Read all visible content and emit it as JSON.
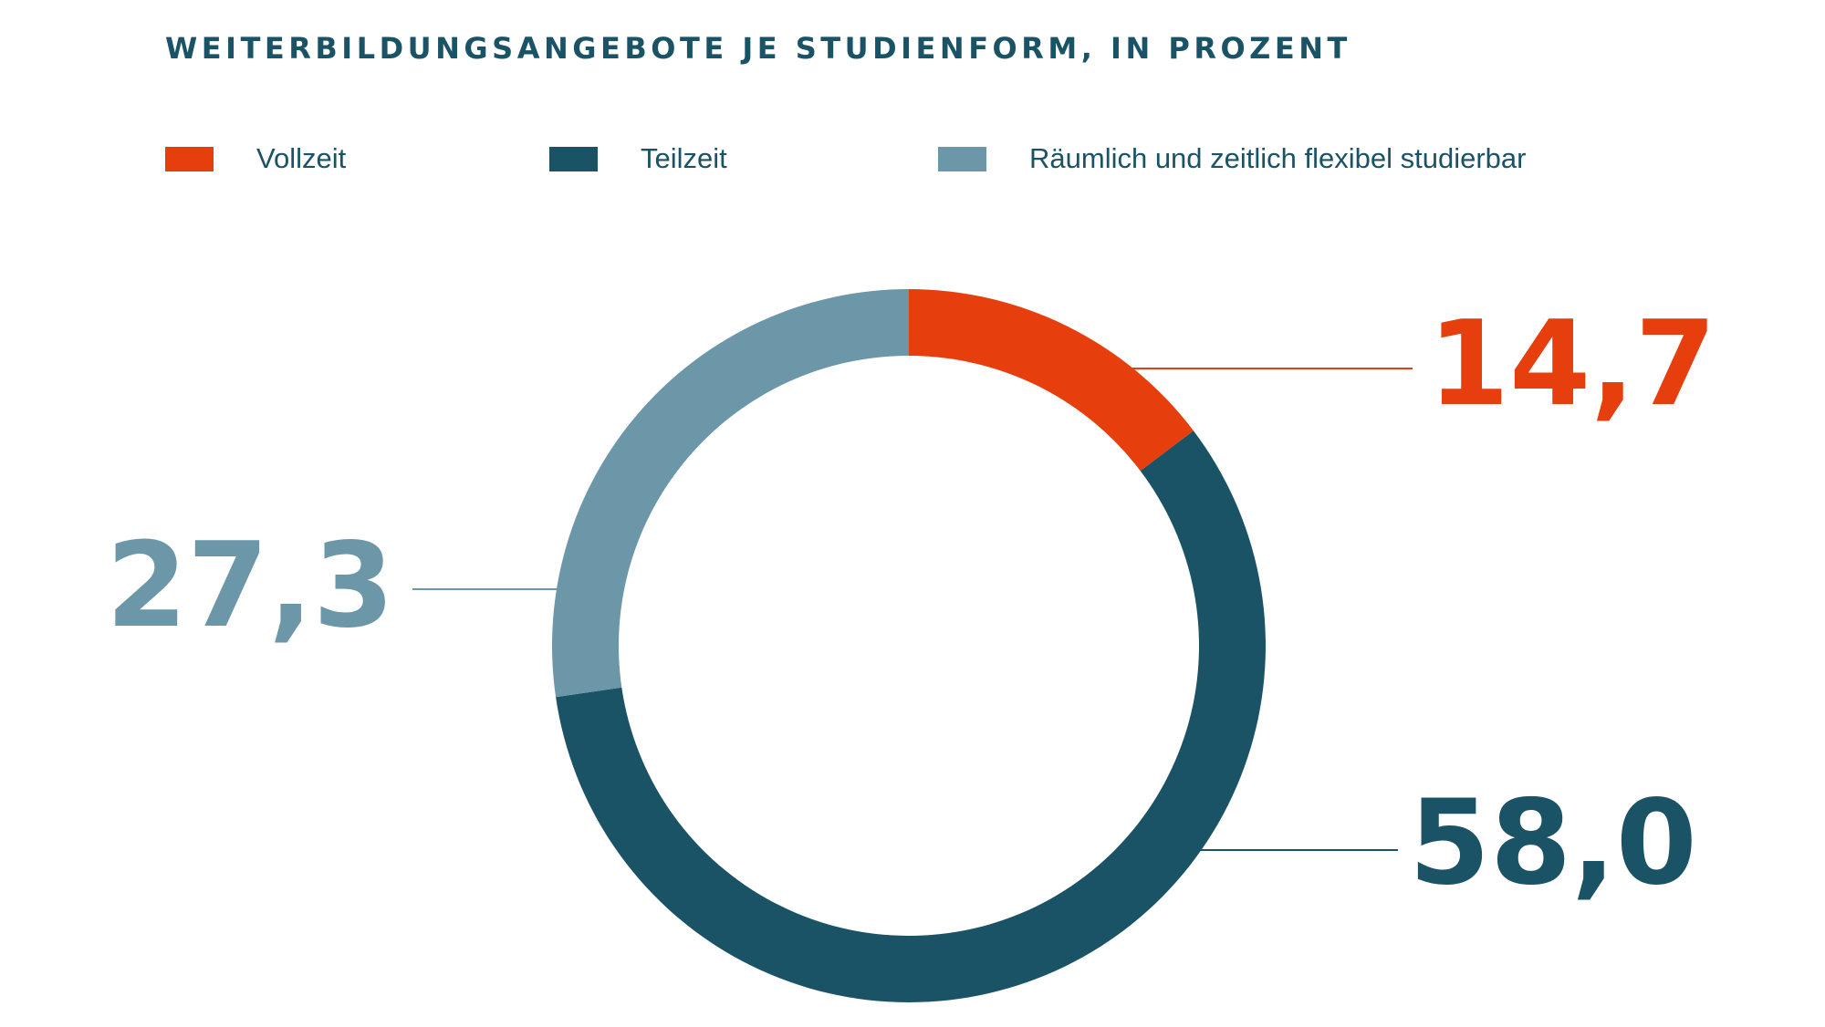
{
  "chart_data": {
    "type": "pie",
    "variant": "donut",
    "title": "WEITERBILDUNGSANGEBOTE JE STUDIENFORM, IN PROZENT",
    "legend_placement": "top",
    "slices": [
      {
        "name": "Vollzeit",
        "value": 14.7,
        "label": "14,7",
        "color": "#e63e0d"
      },
      {
        "name": "Teilzeit",
        "value": 58.0,
        "label": "58,0",
        "color": "#1b5366"
      },
      {
        "name": "Räumlich und zeitlich flexibel studierbar",
        "value": 27.3,
        "label": "27,3",
        "color": "#6b97a8"
      }
    ]
  }
}
